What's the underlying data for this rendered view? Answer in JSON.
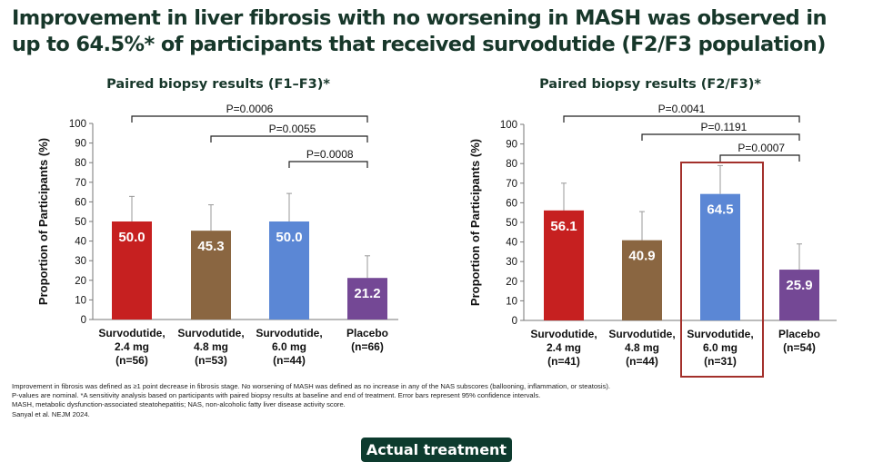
{
  "header": {
    "title_line1": "Improvement in liver fibrosis with no worsening in MASH was observed in",
    "title_line2": "up to 64.5%* of participants that received survodutide (F2/F3 population)"
  },
  "chart_data": [
    {
      "type": "bar",
      "title": "Paired biopsy results (F1–F3)*",
      "ylabel": "Proportion of Participants (%)",
      "ylim": [
        0,
        100
      ],
      "yticks": [
        0,
        10,
        20,
        30,
        40,
        50,
        60,
        70,
        80,
        90,
        100
      ],
      "categories": [
        [
          "Survodutide,",
          "2.4 mg",
          "(n=56)"
        ],
        [
          "Survodutide,",
          "4.8 mg",
          "(n=53)"
        ],
        [
          "Survodutide,",
          "6.0 mg",
          "(n=44)"
        ],
        [
          "Placebo",
          "(n=66)"
        ]
      ],
      "values": [
        50.0,
        45.3,
        50.0,
        21.2
      ],
      "value_labels": [
        "50.0",
        "45.3",
        "50.0",
        "21.2"
      ],
      "error_upper": [
        62.8,
        58.5,
        64.3,
        32.5
      ],
      "colors": [
        "#c62020",
        "#8a6641",
        "#5b87d5",
        "#744895"
      ],
      "comparisons": [
        {
          "from": 0,
          "to": 3,
          "label": "P=0.0006"
        },
        {
          "from": 1,
          "to": 3,
          "label": "P=0.0055"
        },
        {
          "from": 2,
          "to": 3,
          "label": "P=0.0008"
        }
      ],
      "highlight": null
    },
    {
      "type": "bar",
      "title": "Paired biopsy results (F2/F3)*",
      "ylabel": "Proportion of Participants (%)",
      "ylim": [
        0,
        100
      ],
      "yticks": [
        0,
        10,
        20,
        30,
        40,
        50,
        60,
        70,
        80,
        90,
        100
      ],
      "categories": [
        [
          "Survodutide,",
          "2.4 mg",
          "(n=41)"
        ],
        [
          "Survodutide,",
          "4.8 mg",
          "(n=44)"
        ],
        [
          "Survodutide,",
          "6.0 mg",
          "(n=31)"
        ],
        [
          "Placebo",
          "(n=54)"
        ]
      ],
      "values": [
        56.1,
        40.9,
        64.5,
        25.9
      ],
      "value_labels": [
        "56.1",
        "40.9",
        "64.5",
        "25.9"
      ],
      "error_upper": [
        70.0,
        55.5,
        79.0,
        39.0
      ],
      "colors": [
        "#c62020",
        "#8a6641",
        "#5b87d5",
        "#744895"
      ],
      "comparisons": [
        {
          "from": 0,
          "to": 3,
          "label": "P=0.0041"
        },
        {
          "from": 1,
          "to": 3,
          "label": "P=0.1191"
        },
        {
          "from": 2,
          "to": 3,
          "label": "P=0.0007"
        }
      ],
      "highlight": {
        "index": 2,
        "color": "#a3302b"
      }
    }
  ],
  "footnotes": [
    "Improvement in fibrosis was defined as ≥1 point decrease in fibrosis stage. No worsening of MASH was defined as no increase in any of the NAS subscores (ballooning, inflammation, or steatosis).",
    "P-values are nominal. *A sensitivity analysis based on participants with paired biopsy results at baseline and end of treatment. Error bars represent 95% confidence intervals.",
    "MASH, metabolic dysfunction-associated steatohepatitis; NAS, non-alcoholic fatty liver disease activity score.",
    "Sanyal et al. NEJM 2024."
  ],
  "button": {
    "label": "Actual treatment",
    "color": "#0d3b2e"
  }
}
